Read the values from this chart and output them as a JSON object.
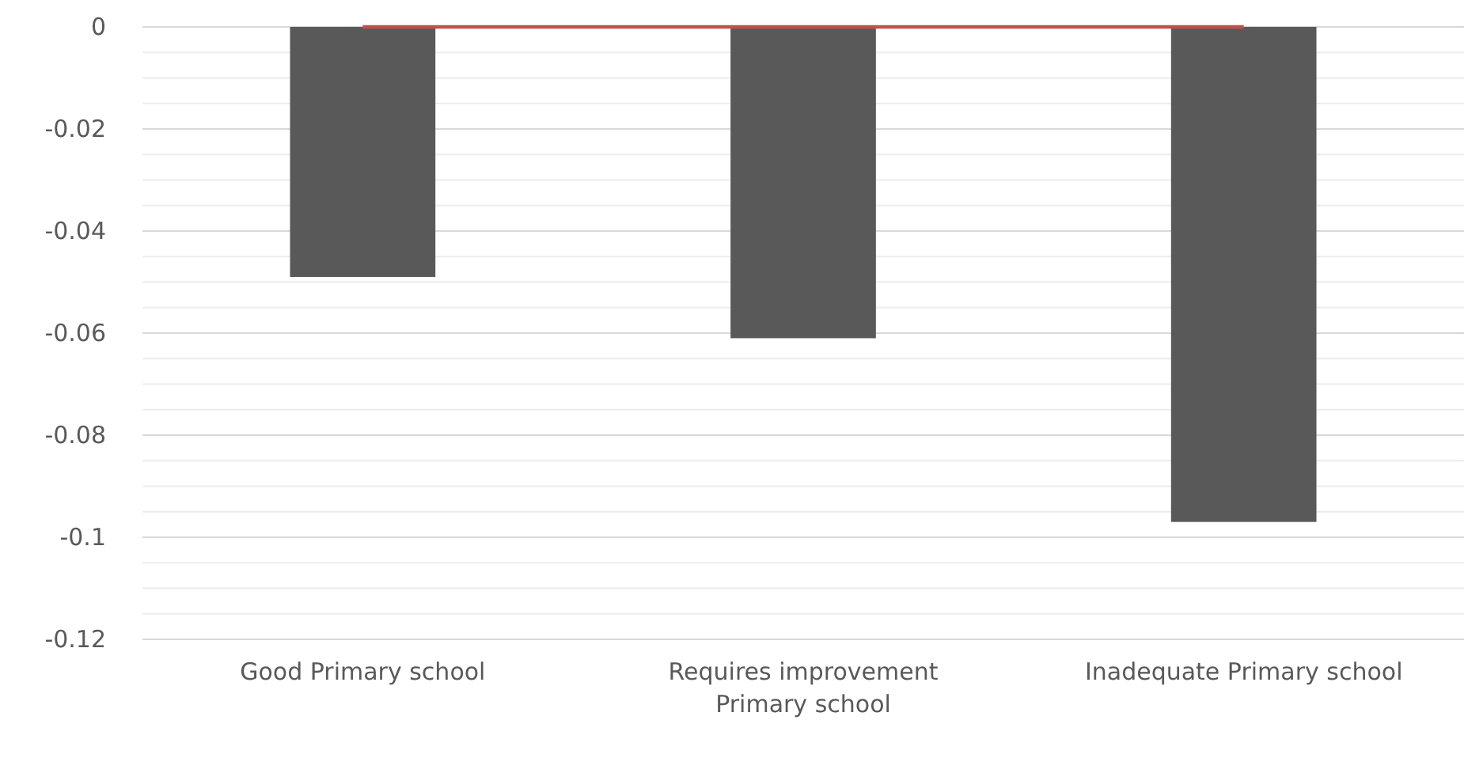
{
  "chart_data": {
    "type": "bar",
    "categories": [
      "Good Primary school",
      "Requires improvement Primary school",
      "Inadequate Primary school"
    ],
    "series": [
      {
        "color": "#595959",
        "values": [
          -0.049,
          -0.061,
          -0.097
        ]
      },
      {
        "type": "line",
        "color": "#c0504d",
        "values": [
          0,
          0,
          0
        ]
      }
    ],
    "ylim": [
      -0.12,
      0
    ],
    "yticks": [
      {
        "value": -0.12,
        "label": "-0.12"
      },
      {
        "value": -0.115,
        "label": null
      },
      {
        "value": -0.11,
        "label": null
      },
      {
        "value": -0.105,
        "label": null
      },
      {
        "value": -0.1,
        "label": "-0.1"
      },
      {
        "value": -0.095,
        "label": null
      },
      {
        "value": -0.09,
        "label": null
      },
      {
        "value": -0.085,
        "label": null
      },
      {
        "value": -0.08,
        "label": "-0.08"
      },
      {
        "value": -0.075,
        "label": null
      },
      {
        "value": -0.07,
        "label": null
      },
      {
        "value": -0.065,
        "label": null
      },
      {
        "value": -0.06,
        "label": "-0.06"
      },
      {
        "value": -0.055,
        "label": null
      },
      {
        "value": -0.05,
        "label": null
      },
      {
        "value": -0.045,
        "label": null
      },
      {
        "value": -0.04,
        "label": "-0.04"
      },
      {
        "value": -0.035,
        "label": null
      },
      {
        "value": -0.03,
        "label": null
      },
      {
        "value": -0.025,
        "label": null
      },
      {
        "value": -0.02,
        "label": "-0.02"
      },
      {
        "value": -0.015,
        "label": null
      },
      {
        "value": -0.01,
        "label": null
      },
      {
        "value": -0.005,
        "label": null
      },
      {
        "value": 0,
        "label": "0"
      }
    ],
    "grid": true
  }
}
